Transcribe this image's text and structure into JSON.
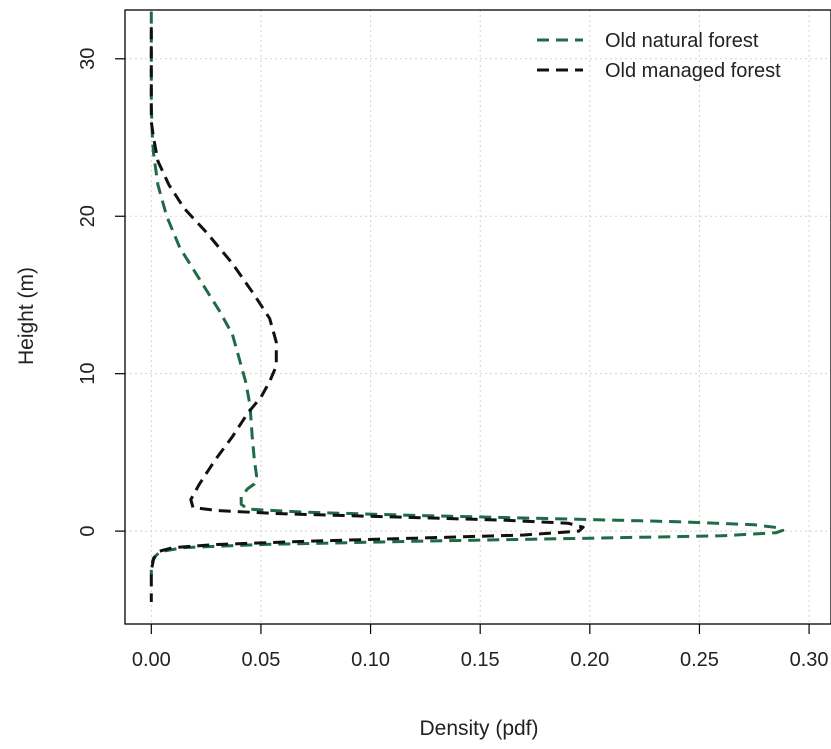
{
  "chart_data": {
    "type": "line",
    "title": "",
    "xlabel": "Density (pdf)",
    "ylabel": "Height (m)",
    "xlim": [
      -0.012,
      0.31
    ],
    "ylim": [
      -5.9,
      33.1
    ],
    "xticks": [
      0.0,
      0.05,
      0.1,
      0.15,
      0.2,
      0.25,
      0.3
    ],
    "xtick_labels": [
      "0.00",
      "0.05",
      "0.10",
      "0.15",
      "0.20",
      "0.25",
      "0.30"
    ],
    "yticks": [
      0,
      10,
      20,
      30
    ],
    "ytick_labels": [
      "0",
      "10",
      "20",
      "30"
    ],
    "grid": true,
    "legend_position": "top-right",
    "series": [
      {
        "name": "Old natural forest",
        "color": "#1f6b45",
        "dash": "dashed",
        "points": [
          [
            0.0,
            33.0
          ],
          [
            0.0,
            30.0
          ],
          [
            0.0,
            27.0
          ],
          [
            0.0005,
            25.0
          ],
          [
            0.001,
            24.0
          ],
          [
            0.003,
            22.0
          ],
          [
            0.007,
            20.0
          ],
          [
            0.013,
            18.0
          ],
          [
            0.022,
            16.0
          ],
          [
            0.031,
            14.0
          ],
          [
            0.037,
            12.5
          ],
          [
            0.04,
            11.0
          ],
          [
            0.043,
            9.5
          ],
          [
            0.045,
            8.0
          ],
          [
            0.046,
            6.0
          ],
          [
            0.047,
            4.5
          ],
          [
            0.048,
            3.5
          ],
          [
            0.047,
            3.0
          ],
          [
            0.044,
            2.7
          ],
          [
            0.041,
            2.2
          ],
          [
            0.041,
            1.7
          ],
          [
            0.044,
            1.4
          ],
          [
            0.07,
            1.2
          ],
          [
            0.12,
            1.0
          ],
          [
            0.18,
            0.8
          ],
          [
            0.24,
            0.6
          ],
          [
            0.275,
            0.4
          ],
          [
            0.287,
            0.2
          ],
          [
            0.288,
            0.05
          ],
          [
            0.285,
            -0.1
          ],
          [
            0.26,
            -0.3
          ],
          [
            0.2,
            -0.45
          ],
          [
            0.12,
            -0.65
          ],
          [
            0.05,
            -0.85
          ],
          [
            0.015,
            -1.05
          ],
          [
            0.004,
            -1.3
          ],
          [
            0.001,
            -1.7
          ],
          [
            0.0,
            -2.2
          ],
          [
            0.0,
            -2.8
          ]
        ]
      },
      {
        "name": "Old managed forest",
        "color": "#111111",
        "dash": "dashed",
        "points": [
          [
            0.0,
            32.0
          ],
          [
            0.0,
            28.0
          ],
          [
            0.0,
            26.0
          ],
          [
            0.001,
            25.0
          ],
          [
            0.003,
            23.5
          ],
          [
            0.008,
            22.0
          ],
          [
            0.015,
            20.5
          ],
          [
            0.025,
            19.0
          ],
          [
            0.037,
            17.0
          ],
          [
            0.047,
            15.0
          ],
          [
            0.054,
            13.5
          ],
          [
            0.057,
            12.0
          ],
          [
            0.057,
            10.5
          ],
          [
            0.054,
            9.5
          ],
          [
            0.05,
            8.5
          ],
          [
            0.044,
            7.5
          ],
          [
            0.037,
            6.0
          ],
          [
            0.029,
            4.5
          ],
          [
            0.022,
            3.0
          ],
          [
            0.018,
            2.0
          ],
          [
            0.019,
            1.5
          ],
          [
            0.03,
            1.3
          ],
          [
            0.06,
            1.1
          ],
          [
            0.11,
            0.9
          ],
          [
            0.16,
            0.7
          ],
          [
            0.19,
            0.5
          ],
          [
            0.197,
            0.25
          ],
          [
            0.195,
            0.0
          ],
          [
            0.17,
            -0.25
          ],
          [
            0.12,
            -0.45
          ],
          [
            0.07,
            -0.65
          ],
          [
            0.03,
            -0.85
          ],
          [
            0.01,
            -1.05
          ],
          [
            0.003,
            -1.3
          ],
          [
            0.001,
            -1.8
          ],
          [
            0.0,
            -2.5
          ],
          [
            0.0,
            -3.5
          ],
          [
            0.0,
            -4.5
          ]
        ]
      }
    ]
  }
}
